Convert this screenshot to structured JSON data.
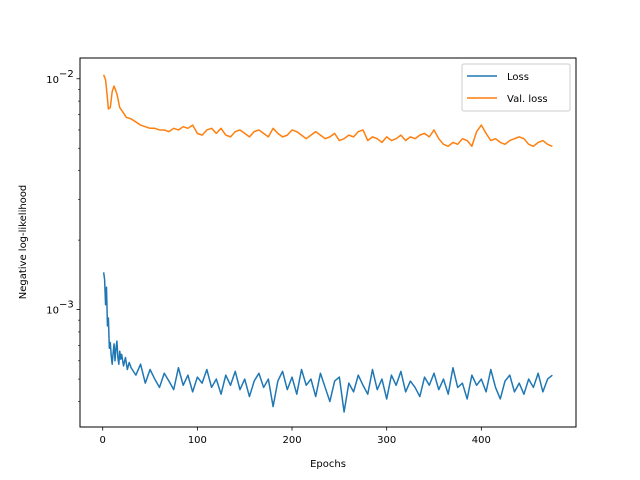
{
  "chart_data": {
    "type": "line",
    "xlabel": "Epochs",
    "ylabel": "Negative log-likelihood",
    "xlim": [
      -24,
      500
    ],
    "ylim": [
      0.00031,
      0.0123
    ],
    "yscale": "log",
    "xticks": [
      0,
      100,
      200,
      300,
      400
    ],
    "yticks": [
      {
        "value": 0.001,
        "label": "10",
        "exp": "−3"
      },
      {
        "value": 0.01,
        "label": "10",
        "exp": "−2"
      }
    ],
    "grid": false,
    "legend_position": "top-right",
    "series": [
      {
        "name": "Loss",
        "color": "#1f77b4",
        "x": [
          1,
          2,
          3,
          4,
          5,
          6,
          7,
          8,
          9,
          10,
          11,
          12,
          13,
          14,
          15,
          16,
          17,
          18,
          19,
          20,
          22,
          24,
          26,
          28,
          30,
          35,
          40,
          45,
          50,
          55,
          60,
          65,
          70,
          75,
          80,
          85,
          90,
          95,
          100,
          105,
          110,
          115,
          120,
          125,
          130,
          135,
          140,
          145,
          150,
          155,
          160,
          165,
          170,
          175,
          180,
          185,
          190,
          195,
          200,
          205,
          210,
          215,
          220,
          225,
          230,
          235,
          240,
          245,
          250,
          255,
          260,
          265,
          270,
          275,
          280,
          285,
          290,
          295,
          300,
          305,
          310,
          315,
          320,
          325,
          330,
          335,
          340,
          345,
          350,
          355,
          360,
          365,
          370,
          375,
          380,
          385,
          390,
          395,
          400,
          405,
          410,
          415,
          420,
          425,
          430,
          435,
          440,
          445,
          450,
          455,
          460,
          465,
          470,
          475
        ],
        "y": [
          0.00145,
          0.00135,
          0.00105,
          0.00125,
          0.00085,
          0.00092,
          0.00068,
          0.00072,
          0.00063,
          0.00058,
          0.00065,
          0.00071,
          0.0006,
          0.00068,
          0.00073,
          0.00062,
          0.00058,
          0.00066,
          0.00061,
          0.00064,
          0.00057,
          0.00062,
          0.00055,
          0.00059,
          0.00056,
          0.00052,
          0.00058,
          0.00048,
          0.00055,
          0.0005,
          0.00046,
          0.00053,
          0.00049,
          0.00045,
          0.00056,
          0.00047,
          0.00052,
          0.00044,
          0.00051,
          0.00048,
          0.00055,
          0.00046,
          0.0005,
          0.00043,
          0.00052,
          0.00047,
          0.00054,
          0.00045,
          0.0005,
          0.00042,
          0.00049,
          0.00053,
          0.00046,
          0.0005,
          0.00038,
          0.00049,
          0.00054,
          0.00045,
          0.00051,
          0.00043,
          0.00055,
          0.00047,
          0.0005,
          0.00042,
          0.00053,
          0.00046,
          0.0004,
          0.00049,
          0.00051,
          0.00036,
          0.00048,
          0.00044,
          0.00052,
          0.00047,
          0.00043,
          0.00055,
          0.00045,
          0.0005,
          0.00041,
          0.00052,
          0.00047,
          0.00054,
          0.00044,
          0.00049,
          0.00046,
          0.00042,
          0.00051,
          0.00047,
          0.00053,
          0.00045,
          0.0005,
          0.00043,
          0.00056,
          0.00046,
          0.00048,
          0.00041,
          0.00052,
          0.00047,
          0.0005,
          0.00044,
          0.00055,
          0.00046,
          0.00041,
          0.00049,
          0.00052,
          0.00044,
          0.00048,
          0.00043,
          0.0005,
          0.00046,
          0.00053,
          0.00044,
          0.0005,
          0.00052
        ]
      },
      {
        "name": "Val. loss",
        "color": "#ff7f0e",
        "x": [
          1,
          3,
          5,
          6,
          8,
          10,
          12,
          15,
          18,
          22,
          25,
          30,
          35,
          40,
          45,
          50,
          55,
          60,
          65,
          70,
          75,
          80,
          85,
          90,
          95,
          100,
          105,
          110,
          115,
          120,
          125,
          130,
          135,
          140,
          145,
          150,
          155,
          160,
          165,
          170,
          175,
          180,
          185,
          190,
          195,
          200,
          205,
          210,
          215,
          220,
          225,
          230,
          235,
          240,
          245,
          250,
          255,
          260,
          265,
          270,
          275,
          280,
          285,
          290,
          295,
          300,
          305,
          310,
          315,
          320,
          325,
          330,
          335,
          340,
          345,
          350,
          355,
          360,
          365,
          370,
          375,
          380,
          385,
          390,
          395,
          400,
          405,
          410,
          415,
          420,
          425,
          430,
          435,
          440,
          445,
          450,
          455,
          460,
          465,
          470,
          475
        ],
        "y": [
          0.0104,
          0.0099,
          0.0082,
          0.0074,
          0.0075,
          0.0088,
          0.0093,
          0.0086,
          0.0075,
          0.0071,
          0.0068,
          0.0067,
          0.0065,
          0.0063,
          0.0062,
          0.0061,
          0.0061,
          0.006,
          0.006,
          0.0059,
          0.0061,
          0.006,
          0.0062,
          0.0061,
          0.0063,
          0.0058,
          0.0057,
          0.006,
          0.0061,
          0.0058,
          0.0061,
          0.0057,
          0.0056,
          0.0059,
          0.006,
          0.0058,
          0.0056,
          0.0059,
          0.006,
          0.0058,
          0.0056,
          0.0061,
          0.0058,
          0.0056,
          0.0057,
          0.006,
          0.0059,
          0.0057,
          0.0055,
          0.0057,
          0.0059,
          0.0057,
          0.0055,
          0.0056,
          0.0058,
          0.0054,
          0.0055,
          0.0057,
          0.0056,
          0.0059,
          0.006,
          0.0054,
          0.0056,
          0.0055,
          0.0053,
          0.0056,
          0.0054,
          0.0055,
          0.0057,
          0.0054,
          0.0056,
          0.0055,
          0.0057,
          0.0058,
          0.0056,
          0.006,
          0.0055,
          0.0052,
          0.0051,
          0.0053,
          0.0052,
          0.0055,
          0.0054,
          0.0051,
          0.0059,
          0.0063,
          0.0058,
          0.0054,
          0.0055,
          0.0053,
          0.0052,
          0.0054,
          0.0055,
          0.0056,
          0.0055,
          0.0052,
          0.0051,
          0.0053,
          0.0054,
          0.0052,
          0.0051
        ]
      }
    ]
  }
}
